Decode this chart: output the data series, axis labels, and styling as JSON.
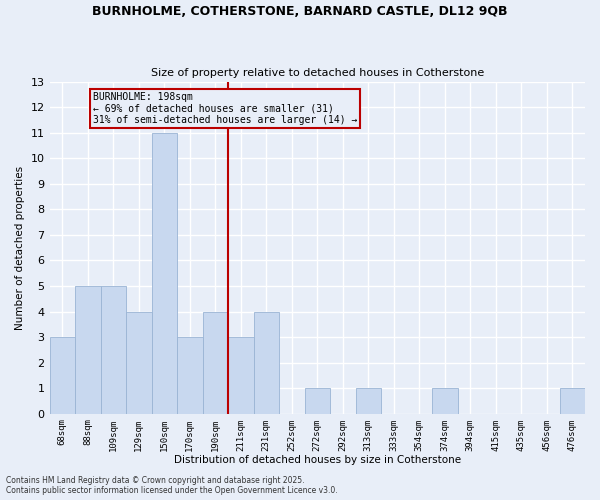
{
  "title1": "BURNHOLME, COTHERSTONE, BARNARD CASTLE, DL12 9QB",
  "title2": "Size of property relative to detached houses in Cotherstone",
  "xlabel": "Distribution of detached houses by size in Cotherstone",
  "ylabel": "Number of detached properties",
  "categories": [
    "68sqm",
    "88sqm",
    "109sqm",
    "129sqm",
    "150sqm",
    "170sqm",
    "190sqm",
    "211sqm",
    "231sqm",
    "252sqm",
    "272sqm",
    "292sqm",
    "313sqm",
    "333sqm",
    "354sqm",
    "374sqm",
    "394sqm",
    "415sqm",
    "435sqm",
    "456sqm",
    "476sqm"
  ],
  "values": [
    3,
    5,
    5,
    4,
    11,
    3,
    4,
    3,
    4,
    0,
    1,
    0,
    1,
    0,
    0,
    1,
    0,
    0,
    0,
    0,
    1
  ],
  "bar_color": "#c8d8ef",
  "bar_edge_color": "#9ab4d4",
  "vline_x": 6.5,
  "vline_color": "#bb0000",
  "annotation_title": "BURNHOLME: 198sqm",
  "annotation_line1": "← 69% of detached houses are smaller (31)",
  "annotation_line2": "31% of semi-detached houses are larger (14) →",
  "annotation_box_color": "#bb0000",
  "ylim": [
    0,
    13
  ],
  "yticks": [
    0,
    1,
    2,
    3,
    4,
    5,
    6,
    7,
    8,
    9,
    10,
    11,
    12,
    13
  ],
  "footnote1": "Contains HM Land Registry data © Crown copyright and database right 2025.",
  "footnote2": "Contains public sector information licensed under the Open Government Licence v3.0.",
  "background_color": "#e8eef8",
  "grid_color": "#ffffff"
}
